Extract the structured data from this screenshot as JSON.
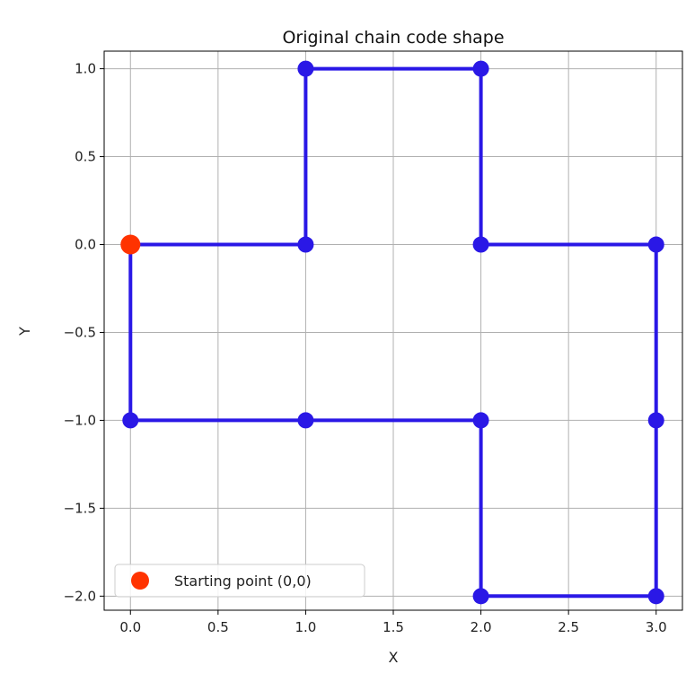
{
  "chart_data": {
    "type": "line",
    "title": "Original chain code shape",
    "xlabel": "X",
    "ylabel": "Y",
    "xlim": [
      -0.15,
      3.15
    ],
    "ylim": [
      -2.08,
      1.1
    ],
    "xticks": [
      0.0,
      0.5,
      1.0,
      1.5,
      2.0,
      2.5,
      3.0
    ],
    "yticks": [
      1.0,
      0.5,
      0.0,
      -0.5,
      -1.0,
      -1.5,
      -2.0
    ],
    "xtick_labels": [
      "0.0",
      "0.5",
      "1.0",
      "1.5",
      "2.0",
      "2.5",
      "3.0"
    ],
    "ytick_labels": [
      "1.0",
      "0.5",
      "0.0",
      "−0.5",
      "−1.0",
      "−1.5",
      "−2.0"
    ],
    "grid": true,
    "legend_position": "lower-left",
    "series": [
      {
        "color": "#2a18e6",
        "points": [
          [
            0,
            0
          ],
          [
            1,
            0
          ],
          [
            1,
            1
          ],
          [
            2,
            1
          ],
          [
            2,
            0
          ],
          [
            3,
            0
          ],
          [
            3,
            -1
          ],
          [
            3,
            -2
          ],
          [
            2,
            -2
          ],
          [
            2,
            -1
          ],
          [
            1,
            -1
          ],
          [
            0,
            -1
          ],
          [
            0,
            0
          ]
        ]
      }
    ],
    "start_point": {
      "name": "Starting point (0,0)",
      "x": 0,
      "y": 0,
      "color": "#ff3300"
    }
  }
}
